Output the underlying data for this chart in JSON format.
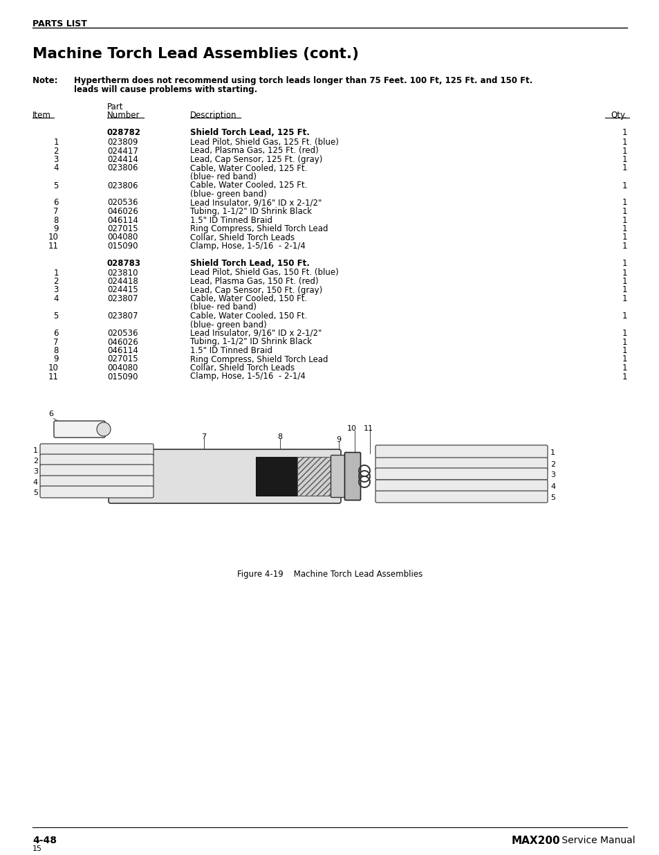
{
  "page_header": "PARTS LIST",
  "section_title": "Machine Torch Lead Assemblies (cont.)",
  "note_label": "Note:   ",
  "note_line1": "Hypertherm does not recommend using torch leads longer than 75 Feet. 100 Ft, 125 Ft. and 150 Ft.",
  "note_line2": "        leads will cause problems with starting.",
  "col_item": "Item",
  "col_part1": "Part",
  "col_part2": "Number",
  "col_desc": "Description",
  "col_qty": "Qty.",
  "section1_part": "028782",
  "section1_desc": "Shield Torch Lead, 125 Ft.",
  "section1_qty": "1",
  "section1_rows": [
    [
      "1",
      "023809",
      "Lead Pilot, Shield Gas, 125 Ft. (blue)",
      "1"
    ],
    [
      "2",
      "024417",
      "Lead, Plasma Gas, 125 Ft. (red)",
      "1"
    ],
    [
      "3",
      "024414",
      "Lead, Cap Sensor, 125 Ft. (gray)",
      "1"
    ],
    [
      "4",
      "023806",
      "Cable, Water Cooled, 125 Ft.",
      "1",
      "(blue- red band)"
    ],
    [
      "5",
      "023806",
      "Cable, Water Cooled, 125 Ft.",
      "1",
      "(blue- green band)"
    ],
    [
      "6",
      "020536",
      "Lead Insulator, 9/16\" ID x 2-1/2\"",
      "1"
    ],
    [
      "7",
      "046026",
      "Tubing, 1-1/2\" ID Shrink Black",
      "1"
    ],
    [
      "8",
      "046114",
      "1.5\" ID Tinned Braid",
      "1"
    ],
    [
      "9",
      "027015",
      "Ring Compress, Shield Torch Lead",
      "1"
    ],
    [
      "10",
      "004080",
      "Collar, Shield Torch Leads",
      "1"
    ],
    [
      "11",
      "015090",
      "Clamp, Hose, 1-5/16  - 2-1/4",
      "1"
    ]
  ],
  "section2_part": "028783",
  "section2_desc": "Shield Torch Lead, 150 Ft.",
  "section2_qty": "1",
  "section2_rows": [
    [
      "1",
      "023810",
      "Lead Pilot, Shield Gas, 150 Ft. (blue)",
      "1"
    ],
    [
      "2",
      "024418",
      "Lead, Plasma Gas, 150 Ft. (red)",
      "1"
    ],
    [
      "3",
      "024415",
      "Lead, Cap Sensor, 150 Ft. (gray)",
      "1"
    ],
    [
      "4",
      "023807",
      "Cable, Water Cooled, 150 Ft.",
      "1",
      "(blue- red band)"
    ],
    [
      "5",
      "023807",
      "Cable, Water Cooled, 150 Ft.",
      "1",
      "(blue- green band)"
    ],
    [
      "6",
      "020536",
      "Lead Insulator, 9/16\" ID x 2-1/2\"",
      "1"
    ],
    [
      "7",
      "046026",
      "Tubing, 1-1/2\" ID Shrink Black",
      "1"
    ],
    [
      "8",
      "046114",
      "1.5\" ID Tinned Braid",
      "1"
    ],
    [
      "9",
      "027015",
      "Ring Compress, Shield Torch Lead",
      "1"
    ],
    [
      "10",
      "004080",
      "Collar, Shield Torch Leads",
      "1"
    ],
    [
      "11",
      "015090",
      "Clamp, Hose, 1-5/16  - 2-1/4",
      "1"
    ]
  ],
  "figure_caption": "Figure 4-19    Machine Torch Lead Assemblies",
  "footer_left": "4-48",
  "footer_left2": "15",
  "footer_right_bold": "MAX200",
  "footer_right_normal": " Service Manual"
}
